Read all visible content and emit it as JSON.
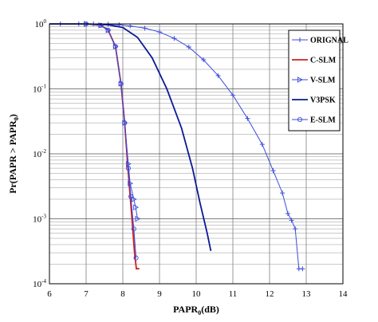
{
  "chart_data": {
    "type": "line",
    "xlabel": "PAPR",
    "xlabel_sub": "0",
    "xlabel_unit": "(dB)",
    "ylabel": "Pr(PAPR > PAPR",
    "ylabel_sub": "0",
    "ylabel_end": ")",
    "y_scale": "log",
    "xlim": [
      6,
      14
    ],
    "ylim": [
      0.0001,
      1
    ],
    "x_ticks": [
      "6",
      "7",
      "8",
      "9",
      "10",
      "11",
      "12",
      "13",
      "14"
    ],
    "y_ticks": [
      {
        "base": "10",
        "exp": "0"
      },
      {
        "base": "10",
        "exp": "-1"
      },
      {
        "base": "10",
        "exp": "-2"
      },
      {
        "base": "10",
        "exp": "-3"
      },
      {
        "base": "10",
        "exp": "-4"
      }
    ],
    "grid": true,
    "legend_position": "top-right",
    "series": [
      {
        "name": "ORIGNAL",
        "color": "#3a4bdc",
        "marker": "plus",
        "points": [
          [
            6.3,
            1.0
          ],
          [
            6.8,
            1.0
          ],
          [
            7.2,
            1.0
          ],
          [
            7.6,
            0.99
          ],
          [
            7.9,
            0.97
          ],
          [
            8.2,
            0.93
          ],
          [
            8.6,
            0.86
          ],
          [
            9.0,
            0.75
          ],
          [
            9.4,
            0.6
          ],
          [
            9.8,
            0.44
          ],
          [
            10.2,
            0.28
          ],
          [
            10.6,
            0.16
          ],
          [
            11.0,
            0.08
          ],
          [
            11.4,
            0.035
          ],
          [
            11.8,
            0.014
          ],
          [
            12.1,
            0.0055
          ],
          [
            12.35,
            0.0025
          ],
          [
            12.5,
            0.0012
          ],
          [
            12.6,
            0.00095
          ],
          [
            12.7,
            0.0007
          ],
          [
            12.8,
            0.00017
          ],
          [
            12.9,
            0.00017
          ]
        ]
      },
      {
        "name": "C-SLM",
        "color": "#d21e1e",
        "marker": "none",
        "points": [
          [
            7.0,
            1.0
          ],
          [
            7.4,
            0.95
          ],
          [
            7.6,
            0.8
          ],
          [
            7.8,
            0.45
          ],
          [
            7.95,
            0.12
          ],
          [
            8.05,
            0.03
          ],
          [
            8.15,
            0.005
          ],
          [
            8.25,
            0.001
          ],
          [
            8.32,
            0.0003
          ],
          [
            8.37,
            0.00017
          ],
          [
            8.45,
            0.00017
          ]
        ]
      },
      {
        "name": "V-SLM",
        "color": "#3a4bdc",
        "marker": "triangle-right",
        "points": [
          [
            7.0,
            1.0
          ],
          [
            7.4,
            0.95
          ],
          [
            7.6,
            0.8
          ],
          [
            7.8,
            0.45
          ],
          [
            7.95,
            0.12
          ],
          [
            8.05,
            0.03
          ],
          [
            8.15,
            0.007
          ],
          [
            8.2,
            0.0035
          ],
          [
            8.3,
            0.002
          ],
          [
            8.35,
            0.0015
          ],
          [
            8.4,
            0.001
          ]
        ]
      },
      {
        "name": "V3PSK",
        "color": "#0a1a96",
        "marker": "none",
        "points": [
          [
            6.0,
            1.0
          ],
          [
            7.0,
            1.0
          ],
          [
            7.6,
            0.97
          ],
          [
            8.0,
            0.88
          ],
          [
            8.4,
            0.62
          ],
          [
            8.8,
            0.3
          ],
          [
            9.2,
            0.1
          ],
          [
            9.6,
            0.025
          ],
          [
            9.9,
            0.006
          ],
          [
            10.1,
            0.0018
          ],
          [
            10.3,
            0.0006
          ],
          [
            10.4,
            0.00032
          ]
        ]
      },
      {
        "name": "E-SLM",
        "color": "#3a4bdc",
        "marker": "circle",
        "points": [
          [
            7.0,
            1.0
          ],
          [
            7.4,
            0.95
          ],
          [
            7.6,
            0.8
          ],
          [
            7.8,
            0.45
          ],
          [
            7.95,
            0.12
          ],
          [
            8.05,
            0.03
          ],
          [
            8.15,
            0.006
          ],
          [
            8.22,
            0.0022
          ],
          [
            8.3,
            0.0007
          ],
          [
            8.36,
            0.00025
          ]
        ]
      }
    ]
  }
}
